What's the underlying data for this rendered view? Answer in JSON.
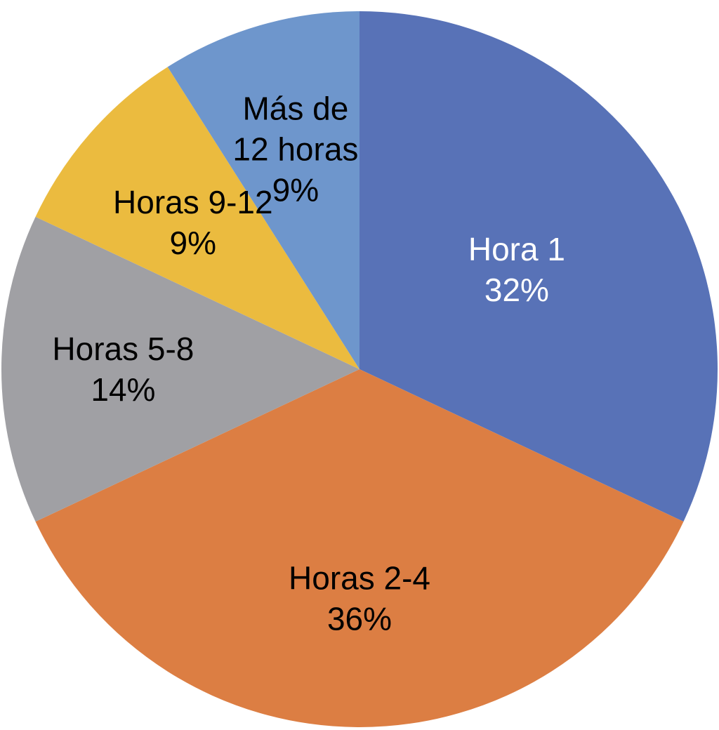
{
  "chart_data": {
    "type": "pie",
    "title": "",
    "start": "top",
    "direction": "clockwise",
    "legend": "none",
    "slices": [
      {
        "label_lines": [
          "Hora 1"
        ],
        "value": 32,
        "value_label": "32%",
        "color": "#5872B7",
        "text_color": "#FFFFFF"
      },
      {
        "label_lines": [
          "Horas 2-4"
        ],
        "value": 36,
        "value_label": "36%",
        "color": "#DC7E43",
        "text_color": "#000000"
      },
      {
        "label_lines": [
          "Horas 5-8"
        ],
        "value": 14,
        "value_label": "14%",
        "color": "#A0A0A4",
        "text_color": "#000000"
      },
      {
        "label_lines": [
          "Horas 9-12"
        ],
        "value": 9,
        "value_label": "9%",
        "color": "#EBBB3F",
        "text_color": "#000000"
      },
      {
        "label_lines": [
          "Más de",
          "12 horas"
        ],
        "value": 9,
        "value_label": "9%",
        "color": "#6E96CC",
        "text_color": "#000000"
      }
    ]
  }
}
